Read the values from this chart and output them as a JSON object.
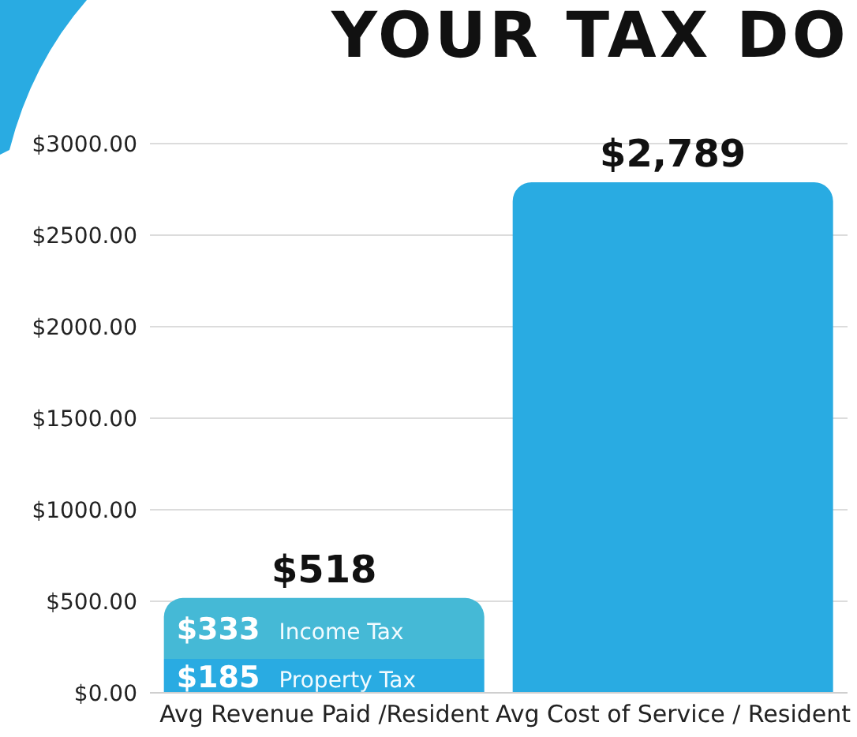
{
  "chart_data": {
    "type": "bar",
    "title": "YOUR TAX DO",
    "stacked": true,
    "categories": [
      "Avg Revenue Paid /Resident",
      "Avg Cost of Service / Resident"
    ],
    "series": [
      {
        "name": "Property Tax",
        "color": "#29abe2",
        "values": [
          185,
          null
        ],
        "value_labels": [
          "$185",
          null
        ]
      },
      {
        "name": "Income Tax",
        "color": "#45b9d6",
        "values": [
          333,
          null
        ],
        "value_labels": [
          "$333",
          null
        ]
      },
      {
        "color": "#29abe2",
        "values": [
          null,
          2789
        ]
      }
    ],
    "totals": [
      "$518",
      "$2,789"
    ],
    "ylim": [
      0,
      3000
    ],
    "yticks": [
      {
        "value": 0,
        "label": "$0.00"
      },
      {
        "value": 500,
        "label": "$500.00"
      },
      {
        "value": 1000,
        "label": "$1000.00"
      },
      {
        "value": 1500,
        "label": "$1500.00"
      },
      {
        "value": 2000,
        "label": "$2000.00"
      },
      {
        "value": 2500,
        "label": "$2500.00"
      },
      {
        "value": 3000,
        "label": "$3000.00"
      }
    ],
    "grid": "y",
    "legend": false
  }
}
